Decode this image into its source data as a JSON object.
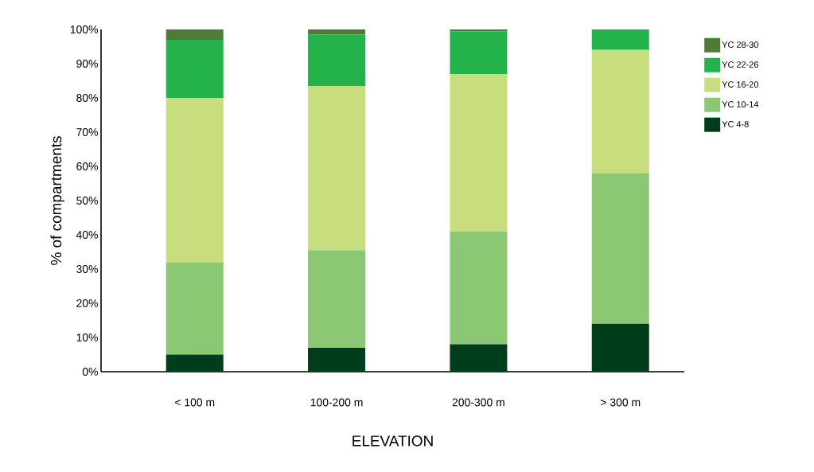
{
  "chart_data": {
    "type": "bar",
    "stacked": true,
    "xlabel": "ELEVATION",
    "ylabel": "% of compartments",
    "categories": [
      "< 100 m",
      "100-200 m",
      "200-300 m",
      "> 300 m"
    ],
    "series": [
      {
        "name": "YC 4-8",
        "color": "#003d1a",
        "values": [
          5,
          7,
          8,
          14
        ]
      },
      {
        "name": "YC 10-14",
        "color": "#8cc874",
        "values": [
          27,
          28.5,
          33,
          44
        ]
      },
      {
        "name": "YC 16-20",
        "color": "#c8dd7e",
        "values": [
          48,
          48,
          46,
          36
        ]
      },
      {
        "name": "YC 22-26",
        "color": "#24b34b",
        "values": [
          17,
          15,
          12.5,
          6
        ]
      },
      {
        "name": "YC 28-30",
        "color": "#4e7a3a",
        "values": [
          3,
          1.5,
          0.5,
          0
        ]
      }
    ],
    "ylim": [
      0,
      100
    ],
    "yticks": [
      {
        "value": 0,
        "label": "0%"
      },
      {
        "value": 10,
        "label": "10%"
      },
      {
        "value": 20,
        "label": "20%"
      },
      {
        "value": 30,
        "label": "30%"
      },
      {
        "value": 40,
        "label": "40%"
      },
      {
        "value": 50,
        "label": "50%"
      },
      {
        "value": 60,
        "label": "60%"
      },
      {
        "value": 70,
        "label": "70%"
      },
      {
        "value": 80,
        "label": "80%"
      },
      {
        "value": 90,
        "label": "90%"
      },
      {
        "value": 100,
        "label": "100%"
      }
    ],
    "grid": false,
    "legend": "right"
  }
}
